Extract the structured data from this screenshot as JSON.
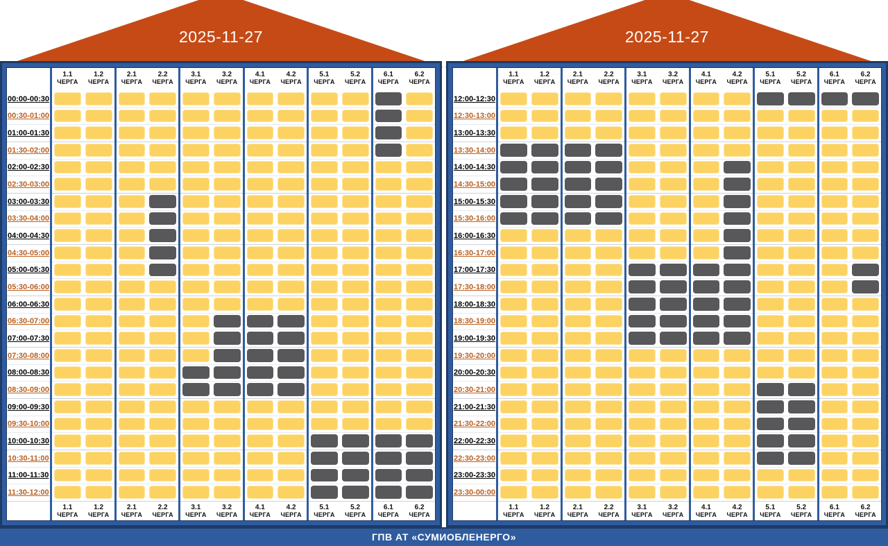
{
  "footer": {
    "label": "ГПВ АТ «СУМИОБЛЕНЕРГО»"
  },
  "queue_word": "ЧЕРГА",
  "queues": [
    "1.1",
    "1.2",
    "2.1",
    "2.2",
    "3.1",
    "3.2",
    "4.1",
    "4.2",
    "5.1",
    "5.2",
    "6.1",
    "6.2"
  ],
  "colors": {
    "roof": "#C64A16",
    "frame": "#2F5C9F",
    "frame_dark": "#1E3A66",
    "cell_on": "#FCD262",
    "cell_off": "#58585A",
    "time_half_hour": "#B95F1E",
    "time_full_hour": "#000000"
  },
  "panels": [
    {
      "date": "2025-11-27",
      "rows": [
        {
          "time": "00:00-00:30",
          "off": [
            "6.1"
          ]
        },
        {
          "time": "00:30-01:00",
          "off": [
            "6.1"
          ]
        },
        {
          "time": "01:00-01:30",
          "off": [
            "6.1"
          ]
        },
        {
          "time": "01:30-02:00",
          "off": [
            "6.1"
          ]
        },
        {
          "time": "02:00-02:30",
          "off": []
        },
        {
          "time": "02:30-03:00",
          "off": []
        },
        {
          "time": "03:00-03:30",
          "off": [
            "2.2"
          ]
        },
        {
          "time": "03:30-04:00",
          "off": [
            "2.2"
          ]
        },
        {
          "time": "04:00-04:30",
          "off": [
            "2.2"
          ]
        },
        {
          "time": "04:30-05:00",
          "off": [
            "2.2"
          ]
        },
        {
          "time": "05:00-05:30",
          "off": [
            "2.2"
          ]
        },
        {
          "time": "05:30-06:00",
          "off": []
        },
        {
          "time": "06:00-06:30",
          "off": []
        },
        {
          "time": "06:30-07:00",
          "off": [
            "3.2",
            "4.1",
            "4.2"
          ]
        },
        {
          "time": "07:00-07:30",
          "off": [
            "3.2",
            "4.1",
            "4.2"
          ]
        },
        {
          "time": "07:30-08:00",
          "off": [
            "3.2",
            "4.1",
            "4.2"
          ]
        },
        {
          "time": "08:00-08:30",
          "off": [
            "3.1",
            "3.2",
            "4.1",
            "4.2"
          ]
        },
        {
          "time": "08:30-09:00",
          "off": [
            "3.1",
            "3.2",
            "4.1",
            "4.2"
          ]
        },
        {
          "time": "09:00-09:30",
          "off": []
        },
        {
          "time": "09:30-10:00",
          "off": []
        },
        {
          "time": "10:00-10:30",
          "off": [
            "5.1",
            "5.2",
            "6.1",
            "6.2"
          ]
        },
        {
          "time": "10:30-11:00",
          "off": [
            "5.1",
            "5.2",
            "6.1",
            "6.2"
          ]
        },
        {
          "time": "11:00-11:30",
          "off": [
            "5.1",
            "5.2",
            "6.1",
            "6.2"
          ]
        },
        {
          "time": "11:30-12:00",
          "off": [
            "5.1",
            "5.2",
            "6.1",
            "6.2"
          ]
        }
      ]
    },
    {
      "date": "2025-11-27",
      "rows": [
        {
          "time": "12:00-12:30",
          "off": [
            "5.1",
            "5.2",
            "6.1",
            "6.2"
          ]
        },
        {
          "time": "12:30-13:00",
          "off": []
        },
        {
          "time": "13:00-13:30",
          "off": []
        },
        {
          "time": "13:30-14:00",
          "off": [
            "1.1",
            "1.2",
            "2.1",
            "2.2"
          ]
        },
        {
          "time": "14:00-14:30",
          "off": [
            "1.1",
            "1.2",
            "2.1",
            "2.2",
            "4.2"
          ]
        },
        {
          "time": "14:30-15:00",
          "off": [
            "1.1",
            "1.2",
            "2.1",
            "2.2",
            "4.2"
          ]
        },
        {
          "time": "15:00-15:30",
          "off": [
            "1.1",
            "1.2",
            "2.1",
            "2.2",
            "4.2"
          ]
        },
        {
          "time": "15:30-16:00",
          "off": [
            "1.1",
            "1.2",
            "2.1",
            "2.2",
            "4.2"
          ]
        },
        {
          "time": "16:00-16:30",
          "off": [
            "4.2"
          ]
        },
        {
          "time": "16:30-17:00",
          "off": [
            "4.2"
          ]
        },
        {
          "time": "17:00-17:30",
          "off": [
            "3.1",
            "3.2",
            "4.1",
            "4.2",
            "6.2"
          ]
        },
        {
          "time": "17:30-18:00",
          "off": [
            "3.1",
            "3.2",
            "4.1",
            "4.2",
            "6.2"
          ]
        },
        {
          "time": "18:00-18:30",
          "off": [
            "3.1",
            "3.2",
            "4.1",
            "4.2"
          ]
        },
        {
          "time": "18:30-19:00",
          "off": [
            "3.1",
            "3.2",
            "4.1",
            "4.2"
          ]
        },
        {
          "time": "19:00-19:30",
          "off": [
            "3.1",
            "3.2",
            "4.1",
            "4.2"
          ]
        },
        {
          "time": "19:30-20:00",
          "off": []
        },
        {
          "time": "20:00-20:30",
          "off": []
        },
        {
          "time": "20:30-21:00",
          "off": [
            "5.1",
            "5.2"
          ]
        },
        {
          "time": "21:00-21:30",
          "off": [
            "5.1",
            "5.2"
          ]
        },
        {
          "time": "21:30-22:00",
          "off": [
            "5.1",
            "5.2"
          ]
        },
        {
          "time": "22:00-22:30",
          "off": [
            "5.1",
            "5.2"
          ]
        },
        {
          "time": "22:30-23:00",
          "off": [
            "5.1",
            "5.2"
          ]
        },
        {
          "time": "23:00-23:30",
          "off": []
        },
        {
          "time": "23:30-00:00",
          "off": []
        }
      ]
    }
  ]
}
